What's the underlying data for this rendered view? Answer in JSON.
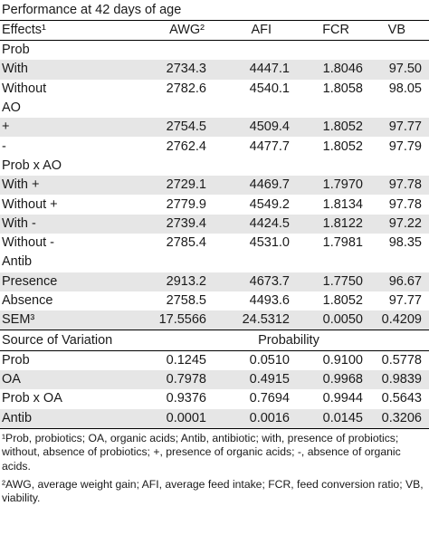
{
  "title": "Performance at 42 days of age",
  "header": [
    "Effects¹",
    "AWG²",
    "AFI",
    "FCR",
    "VB"
  ],
  "main_rows": [
    {
      "label": "Prob",
      "values": [
        "",
        "",
        "",
        ""
      ],
      "shade": false
    },
    {
      "label": "With",
      "values": [
        "2734.3",
        "4447.1",
        "1.8046",
        "97.50"
      ],
      "shade": true
    },
    {
      "label": "Without",
      "values": [
        "2782.6",
        "4540.1",
        "1.8058",
        "98.05"
      ],
      "shade": false
    },
    {
      "label": "AO",
      "values": [
        "",
        "",
        "",
        ""
      ],
      "shade": false
    },
    {
      "label": "+",
      "values": [
        "2754.5",
        "4509.4",
        "1.8052",
        "97.77"
      ],
      "shade": true
    },
    {
      "label": "-",
      "values": [
        "2762.4",
        "4477.7",
        "1.8052",
        "97.79"
      ],
      "shade": false
    },
    {
      "label": "Prob x AO",
      "values": [
        "",
        "",
        "",
        ""
      ],
      "shade": false
    },
    {
      "label": "With +",
      "values": [
        "2729.1",
        "4469.7",
        "1.7970",
        "97.78"
      ],
      "shade": true
    },
    {
      "label": "Without +",
      "values": [
        "2779.9",
        "4549.2",
        "1.8134",
        "97.78"
      ],
      "shade": false
    },
    {
      "label": "With -",
      "values": [
        "2739.4",
        "4424.5",
        "1.8122",
        "97.22"
      ],
      "shade": true
    },
    {
      "label": "Without -",
      "values": [
        "2785.4",
        "4531.0",
        "1.7981",
        "98.35"
      ],
      "shade": false
    },
    {
      "label": "Antib",
      "values": [
        "",
        "",
        "",
        ""
      ],
      "shade": false
    },
    {
      "label": "Presence",
      "values": [
        "2913.2",
        "4673.7",
        "1.7750",
        "96.67"
      ],
      "shade": true
    },
    {
      "label": "Absence",
      "values": [
        "2758.5",
        "4493.6",
        "1.8052",
        "97.77"
      ],
      "shade": false
    },
    {
      "label": "SEM³",
      "values": [
        "17.5566",
        "24.5312",
        "0.0050",
        "0.4209"
      ],
      "shade": true
    }
  ],
  "source_header": {
    "label": "Source of Variation",
    "probability": "Probability"
  },
  "prob_rows": [
    {
      "label": "Prob",
      "values": [
        "0.1245",
        "0.0510",
        "0.9100",
        "0.5778"
      ],
      "shade": false
    },
    {
      "label": "OA",
      "values": [
        "0.7978",
        "0.4915",
        "0.9968",
        "0.9839"
      ],
      "shade": true
    },
    {
      "label": "Prob x OA",
      "values": [
        "0.9376",
        "0.7694",
        "0.9944",
        "0.5643"
      ],
      "shade": false
    },
    {
      "label": "Antib",
      "values": [
        "0.0001",
        "0.0016",
        "0.0145",
        "0.3206"
      ],
      "shade": true
    }
  ],
  "footnotes": [
    "¹Prob, probiotics; OA, organic acids; Antib, antibiotic; with, presence of probiotics; without, absence of probiotics; +, presence of organic acids; -, absence of organic acids.",
    "²AWG, average weight gain; AFI, average feed intake; FCR, feed conversion ratio; VB, viability."
  ]
}
